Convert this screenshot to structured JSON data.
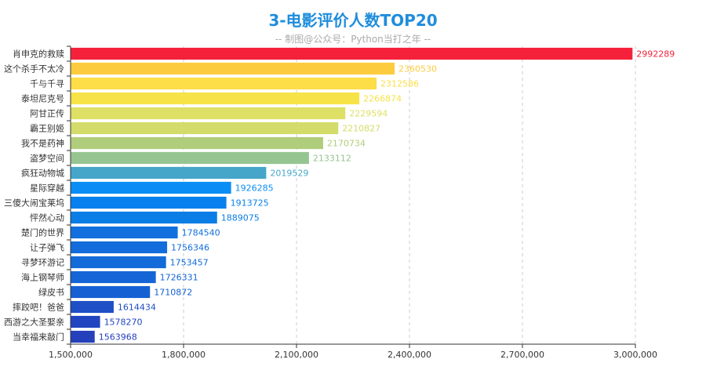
{
  "title": "3-电影评价人数TOP20",
  "subtitle": "-- 制图@公众号：Python当打之年 --",
  "chart_data": {
    "type": "bar",
    "orientation": "horizontal",
    "title": "3-电影评价人数TOP20",
    "subtitle": "-- 制图@公众号：Python当打之年 --",
    "xlabel": "",
    "ylabel": "",
    "xlim": [
      1500000,
      3000000
    ],
    "x_ticks": [
      1500000,
      1800000,
      2100000,
      2400000,
      2700000,
      3000000
    ],
    "x_tick_labels": [
      "1,500,000",
      "1,800,000",
      "2,100,000",
      "2,400,000",
      "2,700,000",
      "3,000,000"
    ],
    "grid": "vertical-dashed",
    "legend": "none",
    "categories": [
      "肖申克的救赎",
      "这个杀手不太冷",
      "千与千寻",
      "泰坦尼克号",
      "阿甘正传",
      "霸王别姬",
      "我不是药神",
      "盗梦空间",
      "疯狂动物城",
      "星际穿越",
      "三傻大闹宝莱坞",
      "怦然心动",
      "楚门的世界",
      "让子弹飞",
      "寻梦环游记",
      "海上钢琴师",
      "绿皮书",
      "摔跤吧！爸爸",
      "西游之大圣娶亲",
      "当幸福来敲门"
    ],
    "values": [
      2992289,
      2360530,
      2312586,
      2266874,
      2229594,
      2210827,
      2170734,
      2133112,
      2019529,
      1926285,
      1913725,
      1889075,
      1784540,
      1756346,
      1753457,
      1726331,
      1710872,
      1614434,
      1578270,
      1563968
    ],
    "value_labels": [
      "2992289",
      "2360530",
      "2312586",
      "2266874",
      "2229594",
      "2210827",
      "2170734",
      "2133112",
      "2019529",
      "1926285",
      "1913725",
      "1889075",
      "1784540",
      "1756346",
      "1753457",
      "1726331",
      "1710872",
      "1614434",
      "1578270",
      "1563968"
    ],
    "colors": [
      "#f5213b",
      "#fdcc3e",
      "#fddd48",
      "#f6e348",
      "#dde064",
      "#d3dc6a",
      "#b0cd7b",
      "#96c591",
      "#46a6ca",
      "#0a8ef5",
      "#0880ed",
      "#0a7de6",
      "#1170dd",
      "#126cdb",
      "#136ad9",
      "#1565d6",
      "#1560d2",
      "#1e4fc5",
      "#2145c0",
      "#2440bb"
    ],
    "label_colors": [
      "#f5213b",
      "#fdcc3e",
      "#fddd48",
      "#f6e348",
      "#dde064",
      "#d3dc6a",
      "#b0cd7b",
      "#96c591",
      "#46a6ca",
      "#0a8ef5",
      "#0880ed",
      "#0a7de6",
      "#1170dd",
      "#126cdb",
      "#136ad9",
      "#1565d6",
      "#1560d2",
      "#1e4fc5",
      "#2145c0",
      "#2440bb"
    ]
  }
}
